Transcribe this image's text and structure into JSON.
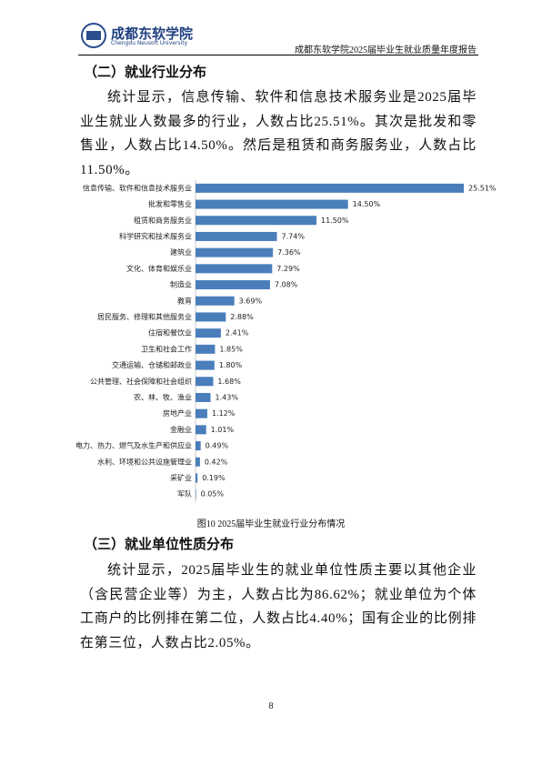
{
  "header": {
    "logo_name": "成都东软学院",
    "logo_subtitle": "Chengdu Neusoft University",
    "report_title": "成都东软学院2025届毕业生就业质量年度报告"
  },
  "section1": {
    "heading": "（二）就业行业分布",
    "paragraph": "统计显示，信息传输、软件和信息技术服务业是2025届毕业生就业人数最多的行业，人数占比25.51%。其次是批发和零售业，人数占比14.50%。然后是租赁和商务服务业，人数占比11.50%。"
  },
  "chart_data": {
    "type": "hbar",
    "color": "#4a7ebb",
    "categories": [
      "信息传输、软件和信息技术服务业",
      "批发和零售业",
      "租赁和商务服务业",
      "科学研究和技术服务业",
      "建筑业",
      "文化、体育和娱乐业",
      "制造业",
      "教育",
      "居民服务、修理和其他服务业",
      "住宿和餐饮业",
      "卫生和社会工作",
      "交通运输、仓储和邮政业",
      "公共管理、社会保障和社会组织",
      "农、林、牧、渔业",
      "房地产业",
      "金融业",
      "电力、热力、燃气及水生产和供应业",
      "水利、环境和公共设施管理业",
      "采矿业",
      "军队"
    ],
    "values": [
      25.51,
      14.5,
      11.5,
      7.74,
      7.36,
      7.29,
      7.08,
      3.69,
      2.88,
      2.41,
      1.85,
      1.8,
      1.68,
      1.43,
      1.12,
      1.01,
      0.49,
      0.42,
      0.19,
      0.05
    ],
    "value_labels": [
      "25.51%",
      "14.50%",
      "11.50%",
      "7.74%",
      "7.36%",
      "7.29%",
      "7.08%",
      "3.69%",
      "2.88%",
      "2.41%",
      "1.85%",
      "1.80%",
      "1.68%",
      "1.43%",
      "1.12%",
      "1.01%",
      "0.49%",
      "0.42%",
      "0.19%",
      "0.05%"
    ]
  },
  "figure_caption": "图10 2025届毕业生就业行业分布情况",
  "section2": {
    "heading": "（三）就业单位性质分布",
    "paragraph": "统计显示，2025届毕业生的就业单位性质主要以其他企业（含民营企业等）为主，人数占比为86.62%；就业单位为个体工商户的比例排在第二位，人数占比4.40%；国有企业的比例排在第三位，人数占比2.05%。"
  },
  "page_number": "8"
}
